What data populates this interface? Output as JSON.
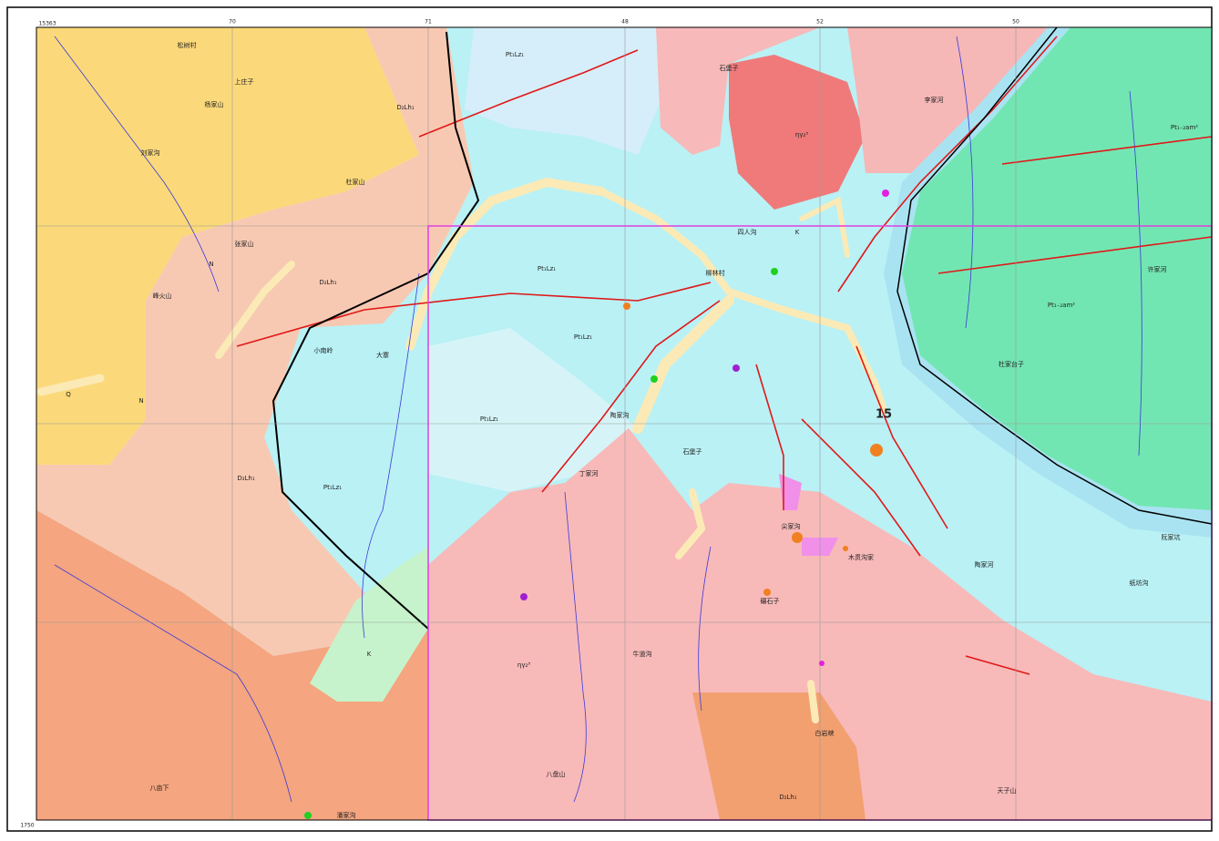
{
  "map": {
    "corner_labels": [
      "15363",
      "1750"
    ],
    "top_ticks": [
      "70",
      "71",
      "48",
      "52",
      "50"
    ],
    "labels": [
      "松树村",
      "杨家山",
      "上庄子",
      "刘家沟",
      "杜家山",
      "张家山",
      "峰火山",
      "D₂Lh₁",
      "D₂Lh₁",
      "D₂Lh₁",
      "N",
      "N",
      "Q",
      "Pt₁Lz₁",
      "Pt₁Lz₁",
      "Pt₁Lz₁",
      "Pt₁Lz₁",
      "Pt₁Lz₁",
      "四人沟",
      "柳林村",
      "李家河",
      "石堡子",
      "许家河",
      "杜家台子",
      "Pt₁₋₂am²",
      "Pt₁₋₂am²",
      "大寨",
      "小南岭",
      "陶家沟",
      "丁家河",
      "石堡子",
      "K",
      "K",
      "尖家沟",
      "木贯沟家",
      "陶家河",
      "纸坊沟",
      "阮家坑",
      "牛道沟",
      "八盘山",
      "八亩下",
      "潘家沟",
      "白岩峡",
      "天子山",
      "ηγ₂³",
      "ηγ₂³",
      "D₂Lh₁",
      "碾石子",
      "15"
    ]
  }
}
